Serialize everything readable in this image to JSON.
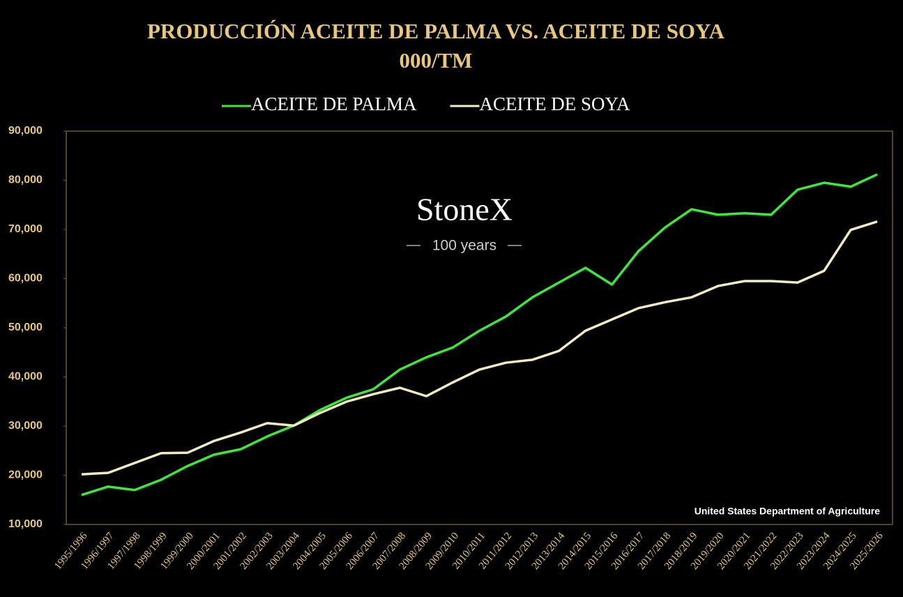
{
  "chart_data": {
    "type": "line",
    "title": "PRODUCCIÓN ACEITE DE PALMA VS. ACEITE DE SOYA",
    "subtitle": "000/TM",
    "watermark": "StoneX",
    "watermark_subtitle": "100 years",
    "source": "United States Department of Agriculture",
    "categories": [
      "1995/1996",
      "1996/1997",
      "1997/1998",
      "1998/1999",
      "1999/2000",
      "2000/2001",
      "2001/2002",
      "2002/2003",
      "2003/2004",
      "2004/2005",
      "2005/2006",
      "2006/2007",
      "2007/2008",
      "2008/2009",
      "2009/2010",
      "2010/2011",
      "2011/2012",
      "2012/2013",
      "2013/2014",
      "2014/2015",
      "2015/2016",
      "2016/2017",
      "2017/2018",
      "2018/2019",
      "2019/2020",
      "2020/2021",
      "2021/2022",
      "2022/2023",
      "2023/2024",
      "2024/2025",
      "2025/2026"
    ],
    "series": [
      {
        "name": "ACEITE DE PALMA",
        "color": "#3ee83a",
        "values": [
          16000,
          17700,
          17000,
          19100,
          21900,
          24200,
          25300,
          27900,
          30100,
          33300,
          35800,
          37500,
          41500,
          44000,
          46000,
          49400,
          52300,
          56200,
          59200,
          62200,
          58800,
          65600,
          70400,
          74100,
          73000,
          73300,
          73000,
          78100,
          79500,
          78700,
          81200
        ]
      },
      {
        "name": "ACEITE DE SOYA",
        "color": "#f3ecc0",
        "values": [
          20200,
          20500,
          22500,
          24500,
          24600,
          27000,
          28700,
          30600,
          30100,
          32700,
          35000,
          36500,
          37800,
          36100,
          38900,
          41500,
          42900,
          43500,
          45300,
          49400,
          51700,
          54000,
          55200,
          56200,
          58500,
          59500,
          59500,
          59200,
          61600,
          69900,
          71600
        ]
      }
    ],
    "ylim": [
      10000,
      90000
    ],
    "yticks": [
      {
        "value": 10000,
        "label": "10,000"
      },
      {
        "value": 20000,
        "label": "20,000"
      },
      {
        "value": 30000,
        "label": "30,000"
      },
      {
        "value": 40000,
        "label": "40,000"
      },
      {
        "value": 50000,
        "label": "50,000"
      },
      {
        "value": 60000,
        "label": "60,000"
      },
      {
        "value": 70000,
        "label": "70,000"
      },
      {
        "value": 80000,
        "label": "80,000"
      },
      {
        "value": 90000,
        "label": "90,000"
      }
    ],
    "legend": "top"
  }
}
